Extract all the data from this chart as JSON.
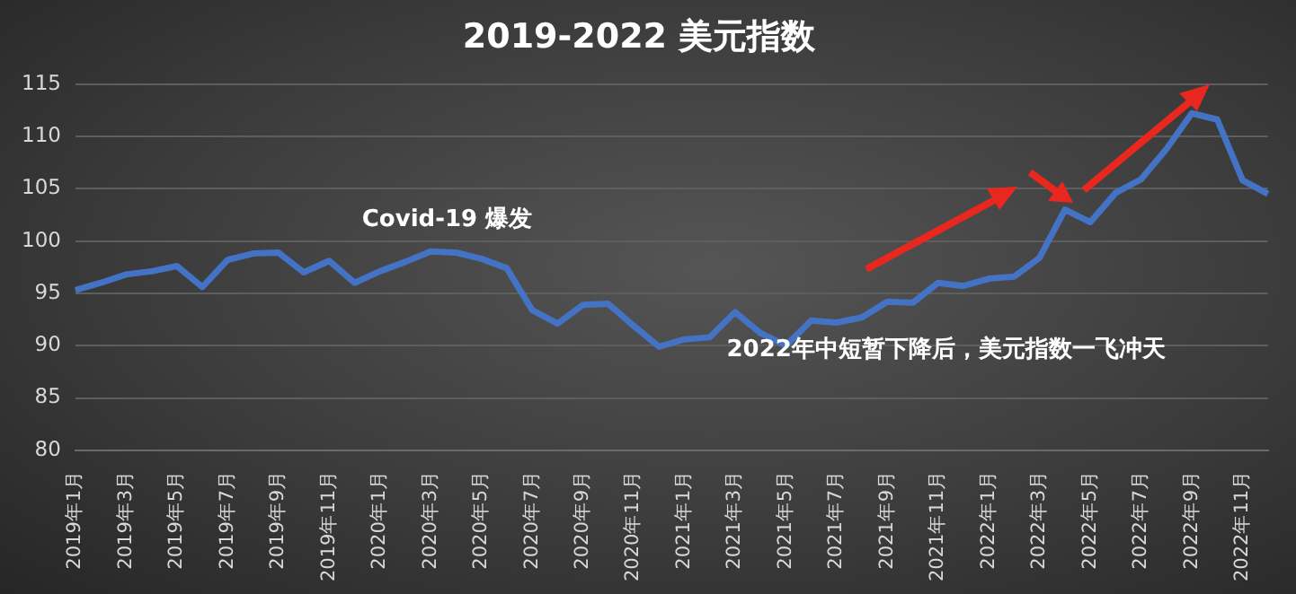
{
  "chart_data": {
    "type": "line",
    "title": "2019-2022 美元指数",
    "categories": [
      "2019年1月",
      null,
      "2019年3月",
      null,
      "2019年5月",
      null,
      "2019年7月",
      null,
      "2019年9月",
      null,
      "2019年11月",
      null,
      "2020年1月",
      null,
      "2020年3月",
      null,
      "2020年5月",
      null,
      "2020年7月",
      null,
      "2020年9月",
      null,
      "2020年11月",
      null,
      "2021年1月",
      null,
      "2021年3月",
      null,
      "2021年5月",
      null,
      "2021年7月",
      null,
      "2021年9月",
      null,
      "2021年11月",
      null,
      "2022年1月",
      null,
      "2022年3月",
      null,
      "2022年5月",
      null,
      "2022年7月",
      null,
      "2022年9月",
      null,
      "2022年11月",
      null
    ],
    "series": [
      {
        "color": "#4472c4",
        "values": [
          95.3,
          96,
          96.8,
          97.1,
          97.6,
          95.6,
          98.2,
          98.8,
          98.9,
          97,
          98.1,
          96,
          97.1,
          98,
          99,
          98.9,
          98.3,
          97.4,
          93.4,
          92.1,
          93.9,
          94,
          91.9,
          89.9,
          90.6,
          90.8,
          93.2,
          91.2,
          90,
          92.4,
          92.2,
          92.7,
          94.2,
          94.1,
          96,
          95.7,
          96.4,
          96.6,
          98.4,
          103,
          101.8,
          104.6,
          105.9,
          108.8,
          112.2,
          111.6,
          105.8,
          104.5
        ]
      }
    ],
    "ylim": [
      80,
      115
    ],
    "yticks": [
      80,
      85,
      90,
      95,
      100,
      105,
      110,
      115
    ],
    "grid": "y",
    "legend": false,
    "marker": "none",
    "line_style": "solid",
    "annotations": [
      "Covid-19 爆发",
      "2022年中短暂下降后，美元指数一飞冲天"
    ]
  }
}
